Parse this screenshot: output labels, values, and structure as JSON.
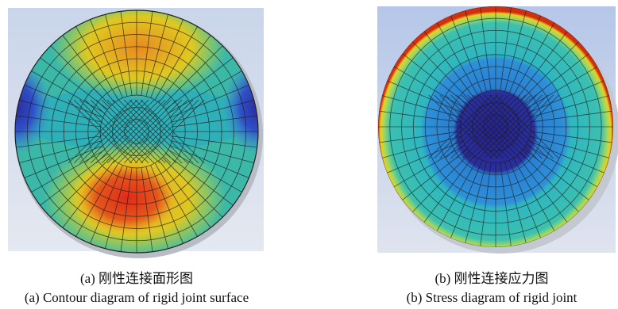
{
  "figures": [
    {
      "caption_zh": "(a) 刚性连接面形图",
      "caption_en": "(a) Contour diagram of rigid joint surface"
    },
    {
      "caption_zh": "(b) 刚性连接应力图",
      "caption_en": "(b) Stress diagram of rigid joint"
    }
  ]
}
